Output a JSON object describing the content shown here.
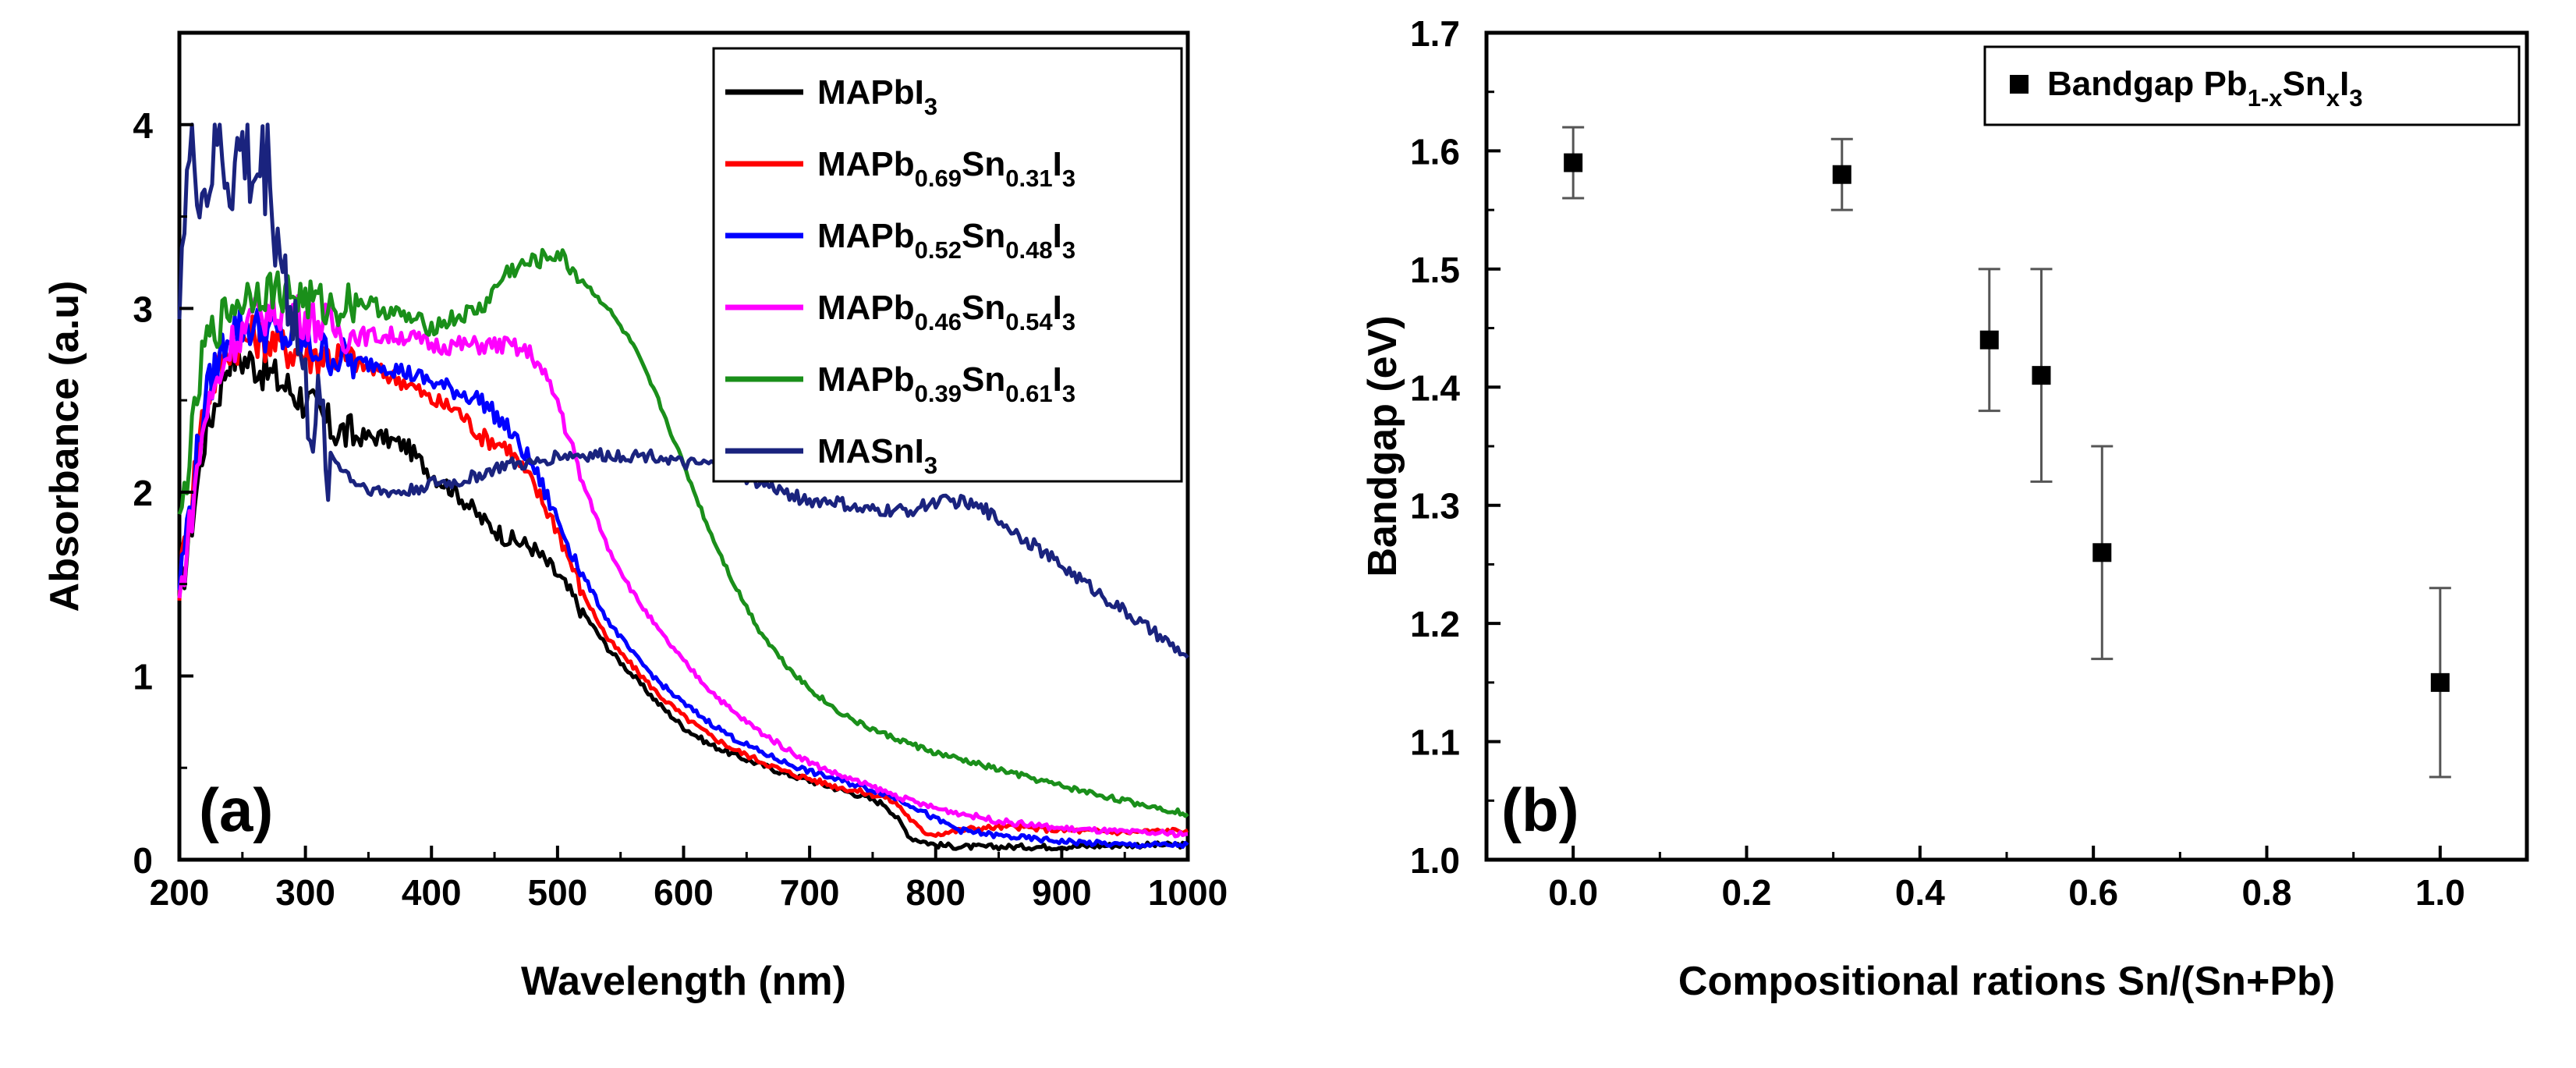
{
  "chart_data": [
    {
      "type": "line",
      "panel_label": "(a)",
      "xlabel": "Wavelength (nm)",
      "ylabel": "Absorbance (a.u)",
      "xlim": [
        200,
        1000
      ],
      "ylim": [
        0,
        4.5
      ],
      "xticks": [
        200,
        300,
        400,
        500,
        600,
        700,
        800,
        900,
        1000
      ],
      "yticks": [
        0,
        1,
        2,
        3,
        4
      ],
      "grid": false,
      "legend_position": "top-right",
      "series": [
        {
          "name": "MAPbI3",
          "label": {
            "base": "MAPbI",
            "parts": [
              {
                "text": "3",
                "sub": true
              }
            ]
          },
          "color": "#000000",
          "x": [
            200,
            220,
            240,
            260,
            280,
            300,
            320,
            340,
            360,
            380,
            400,
            420,
            440,
            460,
            480,
            500,
            520,
            540,
            560,
            580,
            600,
            620,
            640,
            660,
            680,
            700,
            720,
            740,
            760,
            770,
            780,
            800,
            820,
            850,
            900,
            950,
            1000
          ],
          "y": [
            1.4,
            2.3,
            2.75,
            2.7,
            2.6,
            2.5,
            2.35,
            2.3,
            2.3,
            2.25,
            2.1,
            2.0,
            1.85,
            1.75,
            1.7,
            1.55,
            1.35,
            1.15,
            1.0,
            0.85,
            0.72,
            0.63,
            0.57,
            0.52,
            0.47,
            0.43,
            0.39,
            0.35,
            0.3,
            0.22,
            0.12,
            0.08,
            0.07,
            0.07,
            0.07,
            0.08,
            0.08
          ]
        },
        {
          "name": "MAPb0.69Sn0.31I3",
          "label": {
            "base": "MAPb",
            "parts": [
              {
                "text": "0.69",
                "sub": true
              },
              {
                "text": "Sn",
                "sub": false
              },
              {
                "text": "0.31",
                "sub": true
              },
              {
                "text": "I",
                "sub": false
              },
              {
                "text": "3",
                "sub": true
              }
            ]
          },
          "color": "#ff0000",
          "x": [
            200,
            220,
            240,
            260,
            280,
            300,
            320,
            340,
            360,
            380,
            400,
            420,
            440,
            460,
            480,
            500,
            520,
            540,
            560,
            580,
            600,
            620,
            640,
            660,
            680,
            700,
            720,
            740,
            760,
            770,
            780,
            790,
            800,
            830,
            860,
            900,
            950,
            1000
          ],
          "y": [
            1.5,
            2.5,
            2.8,
            2.85,
            2.8,
            2.75,
            2.75,
            2.7,
            2.65,
            2.6,
            2.5,
            2.45,
            2.3,
            2.25,
            2.05,
            1.8,
            1.45,
            1.2,
            1.05,
            0.9,
            0.78,
            0.68,
            0.6,
            0.54,
            0.48,
            0.44,
            0.4,
            0.37,
            0.34,
            0.3,
            0.22,
            0.15,
            0.14,
            0.17,
            0.18,
            0.16,
            0.15,
            0.16
          ]
        },
        {
          "name": "MAPb0.52Sn0.48I3",
          "label": {
            "base": "MAPb",
            "parts": [
              {
                "text": "0.52",
                "sub": true
              },
              {
                "text": "Sn",
                "sub": false
              },
              {
                "text": "0.48",
                "sub": true
              },
              {
                "text": "I",
                "sub": false
              },
              {
                "text": "3",
                "sub": true
              }
            ]
          },
          "color": "#0000ff",
          "x": [
            200,
            220,
            240,
            260,
            280,
            300,
            320,
            340,
            360,
            380,
            400,
            420,
            440,
            460,
            480,
            500,
            520,
            540,
            560,
            580,
            600,
            620,
            640,
            660,
            680,
            700,
            720,
            740,
            760,
            780,
            800,
            820,
            850,
            900,
            950,
            1000
          ],
          "y": [
            1.5,
            2.5,
            2.9,
            2.9,
            2.85,
            2.8,
            2.75,
            2.7,
            2.7,
            2.65,
            2.6,
            2.55,
            2.5,
            2.35,
            2.15,
            1.85,
            1.55,
            1.3,
            1.12,
            0.97,
            0.85,
            0.75,
            0.66,
            0.59,
            0.53,
            0.48,
            0.44,
            0.4,
            0.36,
            0.3,
            0.22,
            0.16,
            0.13,
            0.1,
            0.08,
            0.08
          ]
        },
        {
          "name": "MAPb0.46Sn0.54I3",
          "label": {
            "base": "MAPb",
            "parts": [
              {
                "text": "0.46",
                "sub": true
              },
              {
                "text": "Sn",
                "sub": false
              },
              {
                "text": "0.54",
                "sub": true
              },
              {
                "text": "I",
                "sub": false
              },
              {
                "text": "3",
                "sub": true
              }
            ]
          },
          "color": "#ff00ff",
          "x": [
            200,
            220,
            240,
            260,
            280,
            300,
            320,
            340,
            360,
            380,
            400,
            420,
            440,
            460,
            480,
            500,
            520,
            540,
            560,
            580,
            600,
            620,
            640,
            660,
            680,
            700,
            720,
            740,
            760,
            780,
            800,
            850,
            900,
            950,
            1000
          ],
          "y": [
            1.4,
            2.4,
            2.8,
            2.95,
            3.0,
            2.95,
            2.9,
            2.85,
            2.85,
            2.85,
            2.8,
            2.8,
            2.8,
            2.8,
            2.75,
            2.5,
            2.05,
            1.7,
            1.45,
            1.25,
            1.08,
            0.93,
            0.8,
            0.7,
            0.61,
            0.53,
            0.47,
            0.42,
            0.37,
            0.32,
            0.28,
            0.21,
            0.17,
            0.15,
            0.14
          ]
        },
        {
          "name": "MAPb0.39Sn0.61I3",
          "label": {
            "base": "MAPb",
            "parts": [
              {
                "text": "0.39",
                "sub": true
              },
              {
                "text": "Sn",
                "sub": false
              },
              {
                "text": "0.61",
                "sub": true
              },
              {
                "text": "I",
                "sub": false
              },
              {
                "text": "3",
                "sub": true
              }
            ]
          },
          "color": "#1a8f1a",
          "x": [
            200,
            220,
            240,
            260,
            280,
            300,
            320,
            340,
            360,
            380,
            400,
            420,
            440,
            460,
            480,
            500,
            520,
            540,
            560,
            580,
            600,
            620,
            640,
            660,
            680,
            700,
            720,
            740,
            760,
            780,
            800,
            850,
            900,
            950,
            1000
          ],
          "y": [
            1.8,
            2.8,
            3.0,
            3.1,
            3.1,
            3.05,
            3.0,
            3.05,
            3.0,
            2.95,
            2.9,
            2.95,
            3.0,
            3.2,
            3.25,
            3.3,
            3.15,
            3.0,
            2.8,
            2.5,
            2.15,
            1.8,
            1.5,
            1.25,
            1.07,
            0.93,
            0.82,
            0.74,
            0.68,
            0.63,
            0.58,
            0.49,
            0.4,
            0.32,
            0.25
          ]
        },
        {
          "name": "MASnI3",
          "label": {
            "base": "MASnI",
            "parts": [
              {
                "text": "3",
                "sub": true
              }
            ]
          },
          "color": "#1a237e",
          "x": [
            200,
            210,
            220,
            230,
            240,
            250,
            260,
            270,
            280,
            290,
            300,
            320,
            340,
            360,
            380,
            400,
            420,
            440,
            460,
            480,
            500,
            520,
            540,
            560,
            580,
            600,
            620,
            640,
            660,
            680,
            700,
            720,
            740,
            760,
            780,
            800,
            820,
            840,
            860,
            880,
            900,
            920,
            940,
            960,
            980,
            1000
          ],
          "y": [
            3.2,
            3.9,
            3.6,
            3.9,
            3.7,
            3.85,
            3.7,
            3.8,
            3.3,
            3.0,
            2.5,
            2.2,
            2.05,
            2.0,
            2.0,
            2.05,
            2.05,
            2.1,
            2.15,
            2.15,
            2.2,
            2.2,
            2.2,
            2.2,
            2.2,
            2.15,
            2.15,
            2.1,
            2.05,
            2.0,
            1.95,
            1.95,
            1.9,
            1.9,
            1.9,
            1.95,
            1.95,
            1.9,
            1.8,
            1.7,
            1.6,
            1.5,
            1.4,
            1.3,
            1.2,
            1.1
          ]
        }
      ]
    },
    {
      "type": "scatter",
      "panel_label": "(b)",
      "xlabel": "Compositional rations Sn/(Sn+Pb)",
      "ylabel": "Bandgap (eV)",
      "xlim": [
        -0.1,
        1.1
      ],
      "ylim": [
        1.0,
        1.7
      ],
      "xticks": [
        0.0,
        0.2,
        0.4,
        0.6,
        0.8,
        1.0
      ],
      "xticklabels": [
        "0.0",
        "0.2",
        "0.4",
        "0.6",
        "0.8",
        "1.0"
      ],
      "yticks": [
        1.0,
        1.1,
        1.2,
        1.3,
        1.4,
        1.5,
        1.6,
        1.7
      ],
      "yticklabels": [
        "1.0",
        "1.1",
        "1.2",
        "1.3",
        "1.4",
        "1.5",
        "1.6",
        "1.7"
      ],
      "grid": false,
      "legend_position": "top-right",
      "legend": {
        "name": "Bandgap Pb1-xSnxI3",
        "base": "Bandgap Pb",
        "parts": [
          {
            "text": "1-x",
            "sub": true
          },
          {
            "text": "Sn",
            "sub": false
          },
          {
            "text": "x",
            "sub": true
          },
          {
            "text": "I",
            "sub": false
          },
          {
            "text": "3",
            "sub": true
          }
        ]
      },
      "series": [
        {
          "name": "Bandgap Pb1-xSnxI3",
          "color": "#000000",
          "x": [
            0.0,
            0.31,
            0.48,
            0.54,
            0.61,
            1.0
          ],
          "y": [
            1.59,
            1.58,
            1.44,
            1.41,
            1.26,
            1.15
          ],
          "err_low": [
            1.56,
            1.55,
            1.38,
            1.32,
            1.17,
            1.07
          ],
          "err_high": [
            1.62,
            1.61,
            1.5,
            1.5,
            1.35,
            1.23
          ]
        }
      ]
    }
  ]
}
